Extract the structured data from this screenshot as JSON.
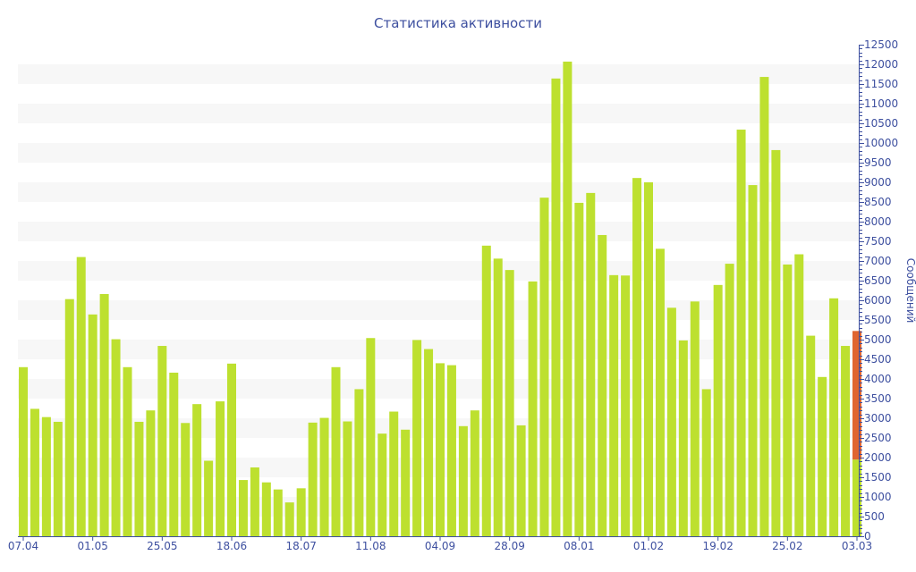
{
  "chart_data": {
    "type": "bar",
    "title": "Статистика активности",
    "ylabel": "Сообщений",
    "xlabel": "",
    "ylim": [
      0,
      12500
    ],
    "y_ticks": [
      0,
      500,
      1000,
      1500,
      2000,
      2500,
      3000,
      3500,
      4000,
      4500,
      5000,
      5500,
      6000,
      6500,
      7000,
      7500,
      8000,
      8500,
      9000,
      9500,
      10000,
      10500,
      11000,
      11500,
      12000,
      12500
    ],
    "y_axis_position": "right",
    "grid": "alternating horizontal bands every 500",
    "x_tick_labels": [
      {
        "bar_index": 0,
        "label": "07.04"
      },
      {
        "bar_index": 6,
        "label": "01.05"
      },
      {
        "bar_index": 12,
        "label": "25.05"
      },
      {
        "bar_index": 18,
        "label": "18.06"
      },
      {
        "bar_index": 24,
        "label": "18.07"
      },
      {
        "bar_index": 30,
        "label": "11.08"
      },
      {
        "bar_index": 36,
        "label": "04.09"
      },
      {
        "bar_index": 42,
        "label": "28.09"
      },
      {
        "bar_index": 48,
        "label": "08.01"
      },
      {
        "bar_index": 54,
        "label": "01.02"
      },
      {
        "bar_index": 60,
        "label": "19.02"
      },
      {
        "bar_index": 66,
        "label": "25.02"
      },
      {
        "bar_index": 72,
        "label": "03.03"
      }
    ],
    "colors": {
      "bar": "#bde02f",
      "highlight": "#e06530",
      "axis": "#3d4f9f",
      "band": "#f7f7f7"
    },
    "values": [
      4300,
      3240,
      3030,
      2910,
      6030,
      7100,
      5640,
      6160,
      5010,
      4300,
      2910,
      3200,
      4840,
      4160,
      2880,
      3360,
      1920,
      3430,
      4390,
      1430,
      1750,
      1370,
      1190,
      860,
      1220,
      2890,
      3010,
      4300,
      2920,
      3740,
      5040,
      2610,
      3170,
      2710,
      4990,
      4760,
      4400,
      4350,
      2800,
      3200,
      7390,
      7060,
      6770,
      2820,
      6480,
      8610,
      11640,
      12070,
      8480,
      8730,
      7660,
      6640,
      6630,
      9110,
      9000,
      7310,
      5810,
      4980,
      5970,
      3740,
      6390,
      6930,
      10340,
      8930,
      11680,
      9820,
      6910,
      7170,
      5100,
      4050,
      6050,
      4840,
      1950
    ],
    "last_bar_extra": 3270
  }
}
